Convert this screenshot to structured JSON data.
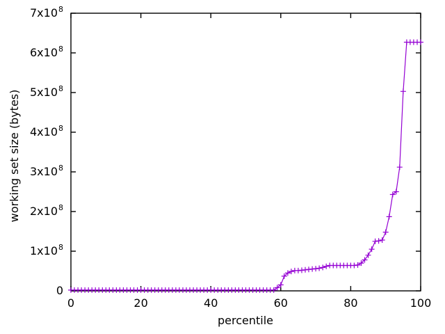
{
  "chart_data": {
    "type": "line",
    "title": "",
    "xlabel": "percentile",
    "ylabel": "working set size (bytes)",
    "line_color": "#9400d3",
    "marker": "plus",
    "grid": false,
    "legend": "none",
    "background_color": "#ffffff",
    "axis_color": "#000000",
    "text_color": "#000000",
    "xlim": [
      0,
      100
    ],
    "ylim": [
      0,
      700000000.0
    ],
    "xticks": {
      "values": [
        0,
        20,
        40,
        60,
        80,
        100
      ],
      "labels": [
        "0",
        "20",
        "40",
        "60",
        "80",
        "100"
      ]
    },
    "yticks": {
      "values": [
        0,
        100000000.0,
        200000000.0,
        300000000.0,
        400000000.0,
        500000000.0,
        600000000.0,
        700000000.0
      ],
      "labels": [
        "0",
        "1x10^8",
        "2x10^8",
        "3x10^8",
        "4x10^8",
        "5x10^8",
        "6x10^8",
        "7x10^8"
      ]
    },
    "x": [
      0,
      1,
      2,
      3,
      4,
      5,
      6,
      7,
      8,
      9,
      10,
      11,
      12,
      13,
      14,
      15,
      16,
      17,
      18,
      19,
      20,
      21,
      22,
      23,
      24,
      25,
      26,
      27,
      28,
      29,
      30,
      31,
      32,
      33,
      34,
      35,
      36,
      37,
      38,
      39,
      40,
      41,
      42,
      43,
      44,
      45,
      46,
      47,
      48,
      49,
      50,
      51,
      52,
      53,
      54,
      55,
      56,
      57,
      58,
      59,
      60,
      61,
      62,
      63,
      64,
      65,
      66,
      67,
      68,
      69,
      70,
      71,
      72,
      73,
      74,
      75,
      76,
      77,
      78,
      79,
      80,
      81,
      82,
      83,
      84,
      85,
      86,
      87,
      88,
      89,
      90,
      91,
      92,
      93,
      94,
      95,
      96,
      97,
      98,
      99,
      100
    ],
    "y": [
      2000000.0,
      2000000.0,
      2000000.0,
      2000000.0,
      2000000.0,
      2000000.0,
      2000000.0,
      2000000.0,
      2000000.0,
      2000000.0,
      2000000.0,
      2000000.0,
      2000000.0,
      2000000.0,
      2000000.0,
      2000000.0,
      2000000.0,
      2000000.0,
      2000000.0,
      2000000.0,
      2000000.0,
      2000000.0,
      2000000.0,
      2000000.0,
      2000000.0,
      2000000.0,
      2000000.0,
      2000000.0,
      2000000.0,
      2000000.0,
      2000000.0,
      2000000.0,
      2000000.0,
      2000000.0,
      2000000.0,
      2000000.0,
      2000000.0,
      2000000.0,
      2000000.0,
      2000000.0,
      2000000.0,
      2000000.0,
      2000000.0,
      2000000.0,
      2000000.0,
      2000000.0,
      2000000.0,
      2000000.0,
      2000000.0,
      2000000.0,
      2000000.0,
      2000000.0,
      2000000.0,
      2000000.0,
      2000000.0,
      2000000.0,
      2000000.0,
      2000000.0,
      2000000.0,
      8000000.0,
      15000000.0,
      37000000.0,
      45000000.0,
      49000000.0,
      51000000.0,
      51000000.0,
      52000000.0,
      53000000.0,
      54000000.0,
      55000000.0,
      56000000.0,
      57000000.0,
      59000000.0,
      62000000.0,
      64000000.0,
      64000000.0,
      64000000.0,
      64000000.0,
      64000000.0,
      64000000.0,
      64000000.0,
      64000000.0,
      65000000.0,
      70000000.0,
      78000000.0,
      90000000.0,
      105000000.0,
      125000000.0,
      126000000.0,
      128000000.0,
      148000000.0,
      187000000.0,
      243000000.0,
      250000000.0,
      312000000.0,
      503000000.0,
      627000000.0,
      627000000.0,
      627000000.0,
      627000000.0,
      627000000.0
    ]
  }
}
